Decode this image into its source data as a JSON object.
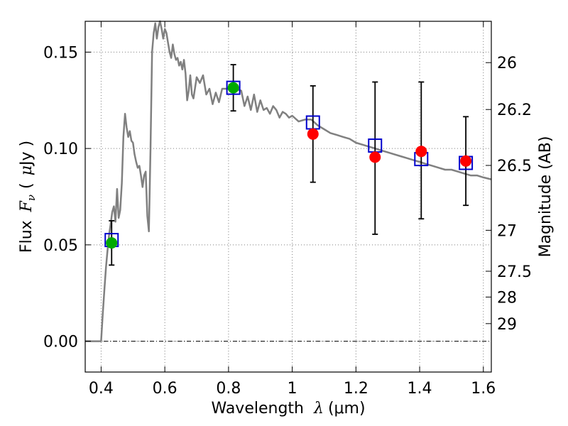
{
  "chart_data": {
    "type": "scatter",
    "xlabel_prefix": "Wavelength",
    "xlabel_symbol": "λ",
    "xlabel_unit": "(μm)",
    "ylabel_prefix": "Flux",
    "ylabel_symbol": "F",
    "ylabel_sub": "ν",
    "ylabel_unit_open": "(",
    "ylabel_unit_mu": "μ",
    "ylabel_unit_rest": "Jy )",
    "y2label": "Magnitude (AB)",
    "xlim": [
      0.35,
      1.625
    ],
    "ylim": [
      -0.016,
      0.166
    ],
    "grid": true,
    "x_ticks": [
      {
        "value": 0.4,
        "label": "0.4"
      },
      {
        "value": 0.6,
        "label": "0.6"
      },
      {
        "value": 0.8,
        "label": "0.8"
      },
      {
        "value": 1.0,
        "label": "1"
      },
      {
        "value": 1.2,
        "label": "1.2"
      },
      {
        "value": 1.4,
        "label": "1.4"
      },
      {
        "value": 1.6,
        "label": "1.6"
      }
    ],
    "y_ticks": [
      {
        "value": 0.0,
        "label": "0.00"
      },
      {
        "value": 0.05,
        "label": "0.05"
      },
      {
        "value": 0.1,
        "label": "0.10"
      },
      {
        "value": 0.15,
        "label": "0.15"
      }
    ],
    "mag_ticks": [
      {
        "value": 26,
        "label": "26"
      },
      {
        "value": 26.2,
        "label": "26.2"
      },
      {
        "value": 26.5,
        "label": "26.5"
      },
      {
        "value": 27,
        "label": "27"
      },
      {
        "value": 27.5,
        "label": "27.5"
      },
      {
        "value": 28,
        "label": "28"
      },
      {
        "value": 29,
        "label": "29"
      }
    ],
    "colors": {
      "sed": "#808080",
      "model": "#0000cc",
      "green": "#00aa00",
      "red": "#ff0000",
      "error": "#000000",
      "grid": "#7f7f7f"
    },
    "sed_model": {
      "x": [
        0.35,
        0.395,
        0.4,
        0.405,
        0.41,
        0.415,
        0.42,
        0.425,
        0.43,
        0.435,
        0.44,
        0.445,
        0.45,
        0.455,
        0.46,
        0.465,
        0.47,
        0.475,
        0.48,
        0.485,
        0.49,
        0.495,
        0.5,
        0.505,
        0.51,
        0.515,
        0.52,
        0.525,
        0.53,
        0.535,
        0.54,
        0.545,
        0.55,
        0.555,
        0.56,
        0.565,
        0.57,
        0.575,
        0.58,
        0.585,
        0.59,
        0.595,
        0.6,
        0.605,
        0.61,
        0.615,
        0.62,
        0.625,
        0.63,
        0.635,
        0.64,
        0.645,
        0.65,
        0.655,
        0.66,
        0.665,
        0.67,
        0.675,
        0.68,
        0.685,
        0.69,
        0.7,
        0.71,
        0.72,
        0.73,
        0.74,
        0.75,
        0.76,
        0.77,
        0.78,
        0.8,
        0.82,
        0.84,
        0.85,
        0.86,
        0.87,
        0.88,
        0.89,
        0.9,
        0.91,
        0.92,
        0.93,
        0.94,
        0.95,
        0.96,
        0.97,
        0.98,
        0.99,
        1.0,
        1.02,
        1.04,
        1.06,
        1.08,
        1.1,
        1.12,
        1.14,
        1.16,
        1.18,
        1.2,
        1.22,
        1.24,
        1.26,
        1.28,
        1.3,
        1.32,
        1.34,
        1.36,
        1.38,
        1.4,
        1.42,
        1.44,
        1.46,
        1.48,
        1.5,
        1.52,
        1.54,
        1.56,
        1.58,
        1.6,
        1.625
      ],
      "y": [
        0.0,
        0.0,
        0.0,
        0.014,
        0.026,
        0.038,
        0.047,
        0.055,
        0.061,
        0.067,
        0.07,
        0.062,
        0.079,
        0.064,
        0.068,
        0.082,
        0.106,
        0.118,
        0.111,
        0.106,
        0.109,
        0.104,
        0.103,
        0.097,
        0.093,
        0.09,
        0.091,
        0.086,
        0.08,
        0.086,
        0.088,
        0.065,
        0.057,
        0.1,
        0.15,
        0.16,
        0.165,
        0.157,
        0.163,
        0.166,
        0.162,
        0.157,
        0.162,
        0.16,
        0.155,
        0.15,
        0.147,
        0.154,
        0.149,
        0.146,
        0.147,
        0.143,
        0.145,
        0.141,
        0.146,
        0.139,
        0.125,
        0.13,
        0.138,
        0.128,
        0.126,
        0.137,
        0.134,
        0.138,
        0.128,
        0.131,
        0.123,
        0.129,
        0.124,
        0.131,
        0.131,
        0.131,
        0.13,
        0.122,
        0.127,
        0.12,
        0.128,
        0.119,
        0.125,
        0.12,
        0.121,
        0.118,
        0.122,
        0.12,
        0.116,
        0.119,
        0.118,
        0.116,
        0.117,
        0.114,
        0.115,
        0.115,
        0.112,
        0.11,
        0.108,
        0.107,
        0.106,
        0.105,
        0.103,
        0.102,
        0.101,
        0.1,
        0.099,
        0.098,
        0.097,
        0.096,
        0.095,
        0.094,
        0.093,
        0.092,
        0.091,
        0.09,
        0.089,
        0.089,
        0.088,
        0.087,
        0.086,
        0.086,
        0.085,
        0.084
      ]
    },
    "model_points": {
      "x": [
        0.433,
        0.815,
        1.065,
        1.26,
        1.405,
        1.545
      ],
      "y": [
        0.0525,
        0.1315,
        0.1135,
        0.1015,
        0.0945,
        0.0925
      ]
    },
    "observed_green": {
      "x": [
        0.433,
        0.815
      ],
      "y": [
        0.051,
        0.1315
      ],
      "yerr_low": [
        0.0395,
        0.1195
      ],
      "yerr_high": [
        0.0625,
        0.1435
      ]
    },
    "observed_red": {
      "x": [
        1.065,
        1.26,
        1.405,
        1.545
      ],
      "y": [
        0.1075,
        0.0955,
        0.0985,
        0.0935
      ],
      "yerr_low": [
        0.0825,
        0.0555,
        0.0635,
        0.0705
      ],
      "yerr_high": [
        0.1325,
        0.1345,
        0.1345,
        0.1165
      ]
    }
  }
}
